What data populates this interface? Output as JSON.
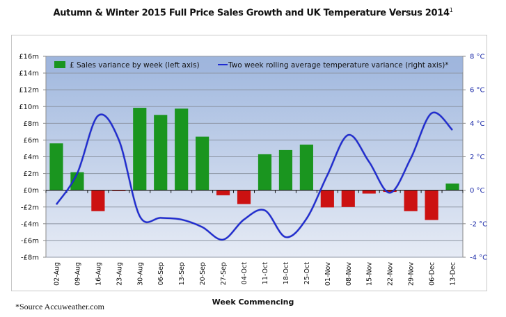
{
  "chart_data": {
    "type": "bar",
    "title": "Autumn & Winter 2015 Full Price Sales Growth and UK Temperature Versus 2014",
    "title_superscript": "1",
    "xlabel": "Week Commencing",
    "ylabel": "",
    "footnote": "*Source Accuweather.com",
    "categories": [
      "02-Aug",
      "09-Aug",
      "16-Aug",
      "23-Aug",
      "30-Aug",
      "06-Sep",
      "13-Sep",
      "20-Sep",
      "27-Sep",
      "04-Oct",
      "11-Oct",
      "18-Oct",
      "25-Oct",
      "01-Nov",
      "08-Nov",
      "15-Nov",
      "22-Nov",
      "29-Nov",
      "06-Dec",
      "13-Dec"
    ],
    "left_axis": {
      "ylim": [
        -8,
        16
      ],
      "ticks": [
        -8,
        -6,
        -4,
        -2,
        0,
        2,
        4,
        6,
        8,
        10,
        12,
        14,
        16
      ],
      "tick_labels": [
        "-£8m",
        "-£6m",
        "-£4m",
        "-£2m",
        "£0m",
        "£2m",
        "£4m",
        "£6m",
        "£8m",
        "£10m",
        "£12m",
        "£14m",
        "£16m"
      ]
    },
    "right_axis": {
      "ylim": [
        -4,
        8
      ],
      "ticks": [
        -4,
        -2,
        0,
        2,
        4,
        6,
        8
      ],
      "tick_labels": [
        "-4 °C",
        "-2 °C",
        "0 °C",
        "2 °C",
        "4 °C",
        "6 °C",
        "8 °C"
      ]
    },
    "series": [
      {
        "name": "£ Sales variance by week (left axis)",
        "type": "bar",
        "axis": "left",
        "units": "£m",
        "positive_color": "#1a951f",
        "negative_color": "#cc1111",
        "values": [
          5.6,
          2.15,
          -2.5,
          -0.1,
          9.85,
          9.0,
          9.75,
          6.4,
          -0.6,
          -1.65,
          4.3,
          4.8,
          5.45,
          -2.05,
          -2.0,
          -0.4,
          -0.2,
          -2.5,
          -3.55,
          0.8
        ]
      },
      {
        "name": "Two week rolling average temperature  variance (right axis)*",
        "type": "line",
        "axis": "right",
        "units": "°C",
        "color": "#1f2bd1",
        "values": [
          -0.85,
          1.0,
          4.45,
          3.0,
          -1.55,
          -1.65,
          -1.75,
          -2.2,
          -2.95,
          -1.75,
          -1.2,
          -2.8,
          -1.7,
          0.9,
          3.3,
          1.7,
          -0.15,
          1.9,
          4.6,
          3.6
        ]
      }
    ],
    "grid": true,
    "legend": "top",
    "plot_background": [
      "#9fb7de",
      "#e6ebf5"
    ]
  }
}
